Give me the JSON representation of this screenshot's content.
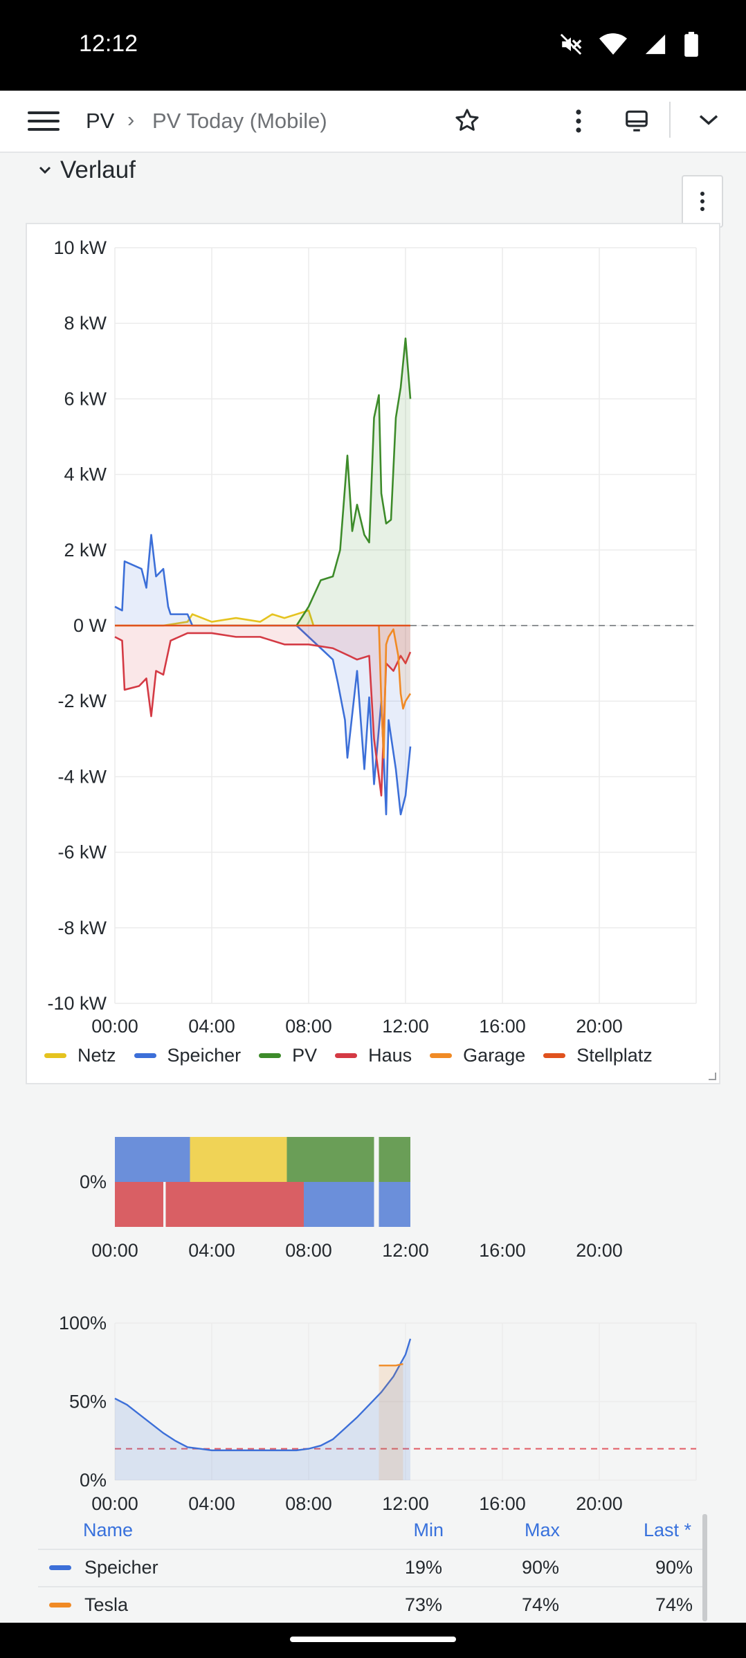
{
  "status_bar": {
    "time": "12:12",
    "icons": [
      "mute-icon",
      "wifi-icon",
      "signal-icon",
      "battery-icon"
    ]
  },
  "toolbar": {
    "breadcrumb": [
      "PV",
      "PV Today (Mobile)"
    ],
    "separator": "›",
    "icons": [
      "menu-icon",
      "star-icon",
      "more-vertical-icon",
      "tv-mode-icon",
      "chevron-down-icon"
    ]
  },
  "row": {
    "title": "Verlauf",
    "collapse_icon": "chevron-down-icon"
  },
  "colors": {
    "netz": "#e5c31f",
    "speicher": "#3c6fd8",
    "pv": "#3d8b2a",
    "haus": "#d43a44",
    "garage": "#f08a25",
    "stellplatz": "#e0521e"
  },
  "chart_data": [
    {
      "type": "line",
      "title": "",
      "y_ticks": [
        "10 kW",
        "8 kW",
        "6 kW",
        "4 kW",
        "2 kW",
        "0 W",
        "-2 kW",
        "-4 kW",
        "-6 kW",
        "-8 kW",
        "-10 kW"
      ],
      "x_ticks": [
        "00:00",
        "04:00",
        "08:00",
        "12:00",
        "16:00",
        "20:00"
      ],
      "ylim": [
        -10,
        10
      ],
      "xlim": [
        0,
        24
      ],
      "series": [
        {
          "name": "Netz",
          "color": "#e5c31f",
          "x": [
            0,
            1,
            2,
            3,
            3.2,
            4,
            5,
            6,
            6.5,
            7,
            7.5,
            8,
            8.2
          ],
          "y": [
            0,
            0,
            0,
            0.1,
            0.3,
            0.1,
            0.2,
            0.1,
            0.3,
            0.2,
            0.3,
            0.4,
            0
          ]
        },
        {
          "name": "Speicher",
          "color": "#3c6fd8",
          "x": [
            0,
            0.3,
            0.4,
            1.1,
            1.3,
            1.5,
            1.7,
            2.0,
            2.2,
            2.3,
            3.0,
            3.2,
            4,
            6,
            7.5,
            8.0,
            8.5,
            9.0,
            9.2,
            9.5,
            9.6,
            10.0,
            10.3,
            10.5,
            10.7,
            11.0,
            11.2,
            11.3,
            11.6,
            11.8,
            12.0,
            12.2
          ],
          "y": [
            0.5,
            0.4,
            1.7,
            1.5,
            1.0,
            2.4,
            1.3,
            1.5,
            0.5,
            0.3,
            0.3,
            0,
            0,
            0,
            0,
            -0.3,
            -0.6,
            -0.9,
            -1.5,
            -2.5,
            -3.5,
            -1.2,
            -3.8,
            -1.9,
            -4.2,
            -2.0,
            -5.0,
            -2.5,
            -3.8,
            -5.0,
            -4.5,
            -3.2
          ]
        },
        {
          "name": "PV",
          "color": "#3d8b2a",
          "x": [
            7.5,
            8.0,
            8.5,
            9.0,
            9.3,
            9.6,
            9.8,
            10.0,
            10.3,
            10.5,
            10.7,
            10.9,
            11.0,
            11.2,
            11.4,
            11.6,
            11.8,
            12.0,
            12.2
          ],
          "y": [
            0,
            0.5,
            1.2,
            1.3,
            2.0,
            4.5,
            2.5,
            3.2,
            2.4,
            2.2,
            5.5,
            6.1,
            3.5,
            2.7,
            2.8,
            5.5,
            6.3,
            7.6,
            6.0
          ]
        },
        {
          "name": "Haus",
          "color": "#d43a44",
          "x": [
            0,
            0.3,
            0.4,
            1.0,
            1.3,
            1.5,
            1.7,
            2.0,
            2.3,
            3,
            4,
            5,
            6,
            7,
            8,
            9,
            10,
            10.5,
            10.7,
            11.0,
            11.2,
            11.5,
            11.8,
            12.0,
            12.2
          ],
          "y": [
            -0.3,
            -0.4,
            -1.7,
            -1.6,
            -1.4,
            -2.4,
            -1.2,
            -1.3,
            -0.4,
            -0.2,
            -0.2,
            -0.3,
            -0.3,
            -0.5,
            -0.5,
            -0.6,
            -0.9,
            -0.8,
            -3.0,
            -4.5,
            -1.0,
            -1.2,
            -0.8,
            -1.0,
            -0.7
          ]
        },
        {
          "name": "Garage",
          "color": "#f08a25",
          "x": [
            10.9,
            11.0,
            11.1,
            11.2,
            11.3,
            11.5,
            11.7,
            11.8,
            11.9,
            12.0,
            12.2
          ],
          "y": [
            0,
            -2.0,
            -3.5,
            -0.5,
            -0.3,
            -0.1,
            -0.8,
            -1.8,
            -2.2,
            -2.0,
            -1.8
          ]
        },
        {
          "name": "Stellplatz",
          "color": "#e0521e",
          "x": [
            0,
            12.2
          ],
          "y": [
            0,
            0
          ]
        }
      ]
    },
    {
      "type": "area",
      "title": "",
      "y_ticks": [
        "0%"
      ],
      "x_ticks": [
        "00:00",
        "04:00",
        "08:00",
        "12:00",
        "16:00",
        "20:00"
      ],
      "xlim": [
        0,
        24
      ],
      "segments": [
        {
          "color": "#6b8fda",
          "part": "upper",
          "from": 0,
          "to": 3.1
        },
        {
          "color": "#f0d356",
          "part": "upper",
          "from": 3.1,
          "to": 7.1
        },
        {
          "color": "#6a9e57",
          "part": "upper",
          "from": 7.1,
          "to": 10.7
        },
        {
          "color": "#6a9e57",
          "part": "upper",
          "from": 10.9,
          "to": 12.2
        },
        {
          "color": "#d95f64",
          "part": "lower",
          "from": 0,
          "to": 2.0
        },
        {
          "color": "#d95f64",
          "part": "lower",
          "from": 2.1,
          "to": 7.8
        },
        {
          "color": "#6b8fda",
          "part": "lower",
          "from": 7.8,
          "to": 10.7
        },
        {
          "color": "#6b8fda",
          "part": "lower",
          "from": 10.9,
          "to": 12.2
        }
      ]
    },
    {
      "type": "line",
      "title": "",
      "y_ticks": [
        "100%",
        "50%",
        "0%"
      ],
      "x_ticks": [
        "00:00",
        "04:00",
        "08:00",
        "12:00",
        "16:00",
        "20:00"
      ],
      "ylim": [
        0,
        100
      ],
      "xlim": [
        0,
        24
      ],
      "threshold": 20,
      "series": [
        {
          "name": "Speicher",
          "color": "#3c6fd8",
          "x": [
            0,
            0.5,
            1,
            1.5,
            2,
            2.5,
            3,
            3.5,
            4,
            5,
            6,
            7,
            7.5,
            8,
            8.5,
            9,
            9.5,
            10,
            10.5,
            11,
            11.5,
            12,
            12.2
          ],
          "y": [
            52,
            48,
            42,
            36,
            30,
            25,
            21,
            20,
            19,
            19,
            19,
            19,
            19,
            20,
            22,
            26,
            33,
            40,
            48,
            56,
            66,
            80,
            90
          ]
        },
        {
          "name": "Tesla",
          "color": "#f08a25",
          "x": [
            10.9,
            11.2,
            11.6,
            11.9
          ],
          "y": [
            73,
            73,
            73,
            74
          ]
        }
      ]
    }
  ],
  "legend": [
    "Netz",
    "Speicher",
    "PV",
    "Haus",
    "Garage",
    "Stellplatz"
  ],
  "table": {
    "headers": [
      "Name",
      "Min",
      "Max",
      "Last *"
    ],
    "rows": [
      {
        "name": "Speicher",
        "color": "#3c6fd8",
        "min": "19%",
        "max": "90%",
        "last": "90%"
      },
      {
        "name": "Tesla",
        "color": "#f08a25",
        "min": "73%",
        "max": "74%",
        "last": "74%"
      }
    ]
  }
}
